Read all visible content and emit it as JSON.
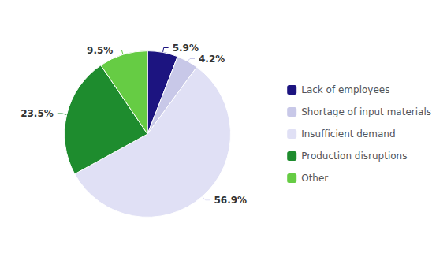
{
  "chart_data": {
    "type": "pie",
    "categories": [
      "Lack of employees",
      "Shortage of input materials",
      "Insufficient demand",
      "Production disruptions",
      "Other"
    ],
    "values": [
      5.9,
      4.2,
      56.9,
      23.5,
      9.5
    ],
    "value_labels": [
      "5.9%",
      "4.2%",
      "56.9%",
      "23.5%",
      "9.5%"
    ],
    "colors": [
      "#1c1480",
      "#c8c8e8",
      "#e0e0f5",
      "#1e8c2e",
      "#66cc44"
    ],
    "data_labels": true,
    "legend": "right"
  }
}
